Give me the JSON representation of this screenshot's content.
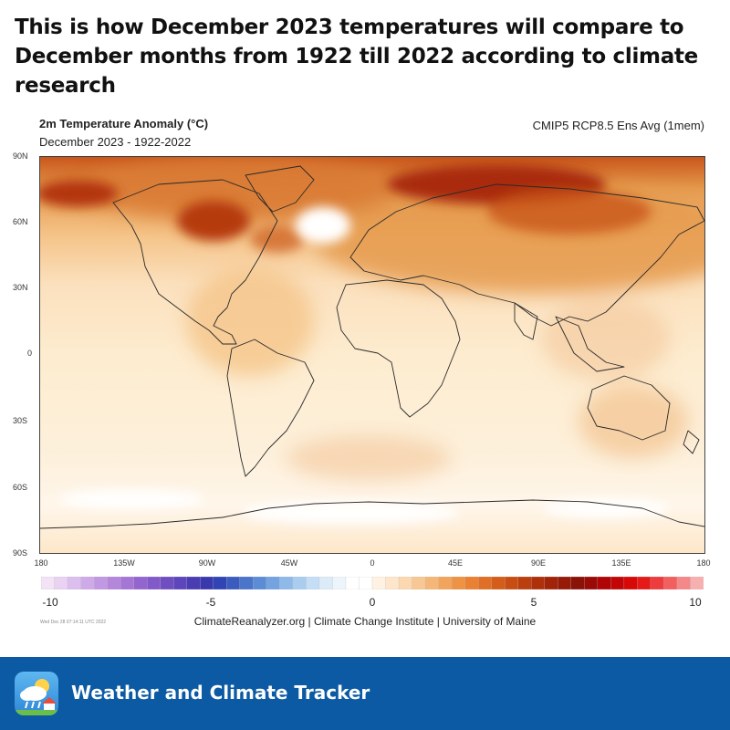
{
  "headline": "This is how December 2023 temperatures will compare to December months from 1922 till 2022 according to climate research",
  "map": {
    "title": "2m Temperature Anomaly (°C)",
    "subtitle": "December 2023 - 1922-2022",
    "model": "CMIP5 RCP8.5 Ens Avg (1mem)",
    "lat_labels": [
      "90N",
      "60N",
      "30N",
      "0",
      "30S",
      "60S",
      "90S"
    ],
    "lon_labels": [
      "180",
      "135W",
      "90W",
      "45W",
      "0",
      "45E",
      "90E",
      "135E",
      "180"
    ]
  },
  "colorbar": {
    "labels": [
      "-10",
      "-5",
      "0",
      "5",
      "10"
    ],
    "min": -10,
    "max": 10,
    "colors": [
      "#f3e3f6",
      "#ead2f2",
      "#dcbfee",
      "#cfaae8",
      "#c198e2",
      "#b486dc",
      "#a576d5",
      "#9366cf",
      "#8159c9",
      "#6f4ec2",
      "#5d45bb",
      "#4a3db3",
      "#3a38ad",
      "#3045b3",
      "#3a5cbf",
      "#4b74cb",
      "#5c8cd6",
      "#74a3df",
      "#8fb9e8",
      "#aacdef",
      "#c4def5",
      "#dbebf8",
      "#edf5fb",
      "#ffffff",
      "#ffffff",
      "#fff2e2",
      "#fde6cb",
      "#fbd8b0",
      "#f8c894",
      "#f5b777",
      "#f2a45c",
      "#ee9244",
      "#e98032",
      "#e06e24",
      "#d45d19",
      "#c84d12",
      "#bb3e0e",
      "#ae300b",
      "#a12409",
      "#951a08",
      "#8b1207",
      "#9a0a06",
      "#b00506",
      "#c40505",
      "#d80808",
      "#e61919",
      "#ee3b3b",
      "#f25f5f",
      "#f48888",
      "#f7b0b0"
    ]
  },
  "credit": "ClimateReanalyzer.org | Climate Change Institute | University of Maine",
  "timestamp": "Wed Dec 28 07:14:11 UTC 2022",
  "footer": {
    "app_name": "Weather and Climate Tracker",
    "icon": "weather-cloud-rain-icon",
    "background": "#0b5aa3"
  },
  "palette": {
    "anomaly_low": "#fdf0db",
    "anomaly_mid": "#f5c489",
    "anomaly_high": "#e59a4d",
    "anomaly_hot": "#c9561b",
    "anomaly_extreme": "#8b1a0b",
    "coast": "#2a2a2a"
  }
}
